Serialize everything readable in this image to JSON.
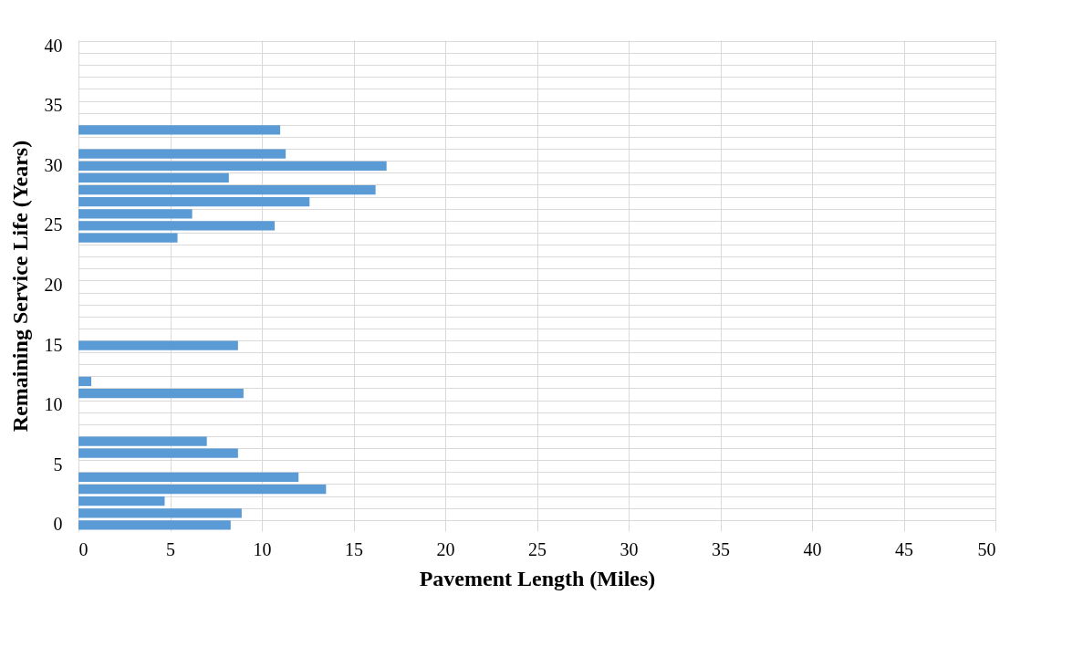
{
  "chart_data": {
    "type": "bar",
    "orientation": "horizontal",
    "xlabel": "Pavement Length (Miles)",
    "ylabel": "Remaining Service Life (Years)",
    "categories": [
      "40",
      null,
      null,
      null,
      null,
      "35",
      null,
      null,
      null,
      null,
      "30",
      null,
      null,
      null,
      null,
      "25",
      null,
      null,
      null,
      null,
      "20",
      null,
      null,
      null,
      null,
      "15",
      null,
      null,
      null,
      null,
      "10",
      null,
      null,
      null,
      null,
      "5",
      null,
      null,
      null,
      null,
      "0"
    ],
    "values": [
      null,
      null,
      null,
      null,
      null,
      null,
      null,
      11.0,
      null,
      11.3,
      16.8,
      8.2,
      16.2,
      12.6,
      6.2,
      10.7,
      5.4,
      null,
      null,
      null,
      null,
      null,
      null,
      null,
      null,
      8.7,
      null,
      null,
      0.7,
      9.0,
      null,
      null,
      null,
      7.0,
      8.7,
      null,
      12.0,
      13.5,
      4.7,
      8.9,
      8.3
    ],
    "color": "#5b9bd5",
    "xlim": [
      0,
      50
    ],
    "xticks": [
      0,
      5,
      10,
      15,
      20,
      25,
      30,
      35,
      40,
      45,
      50
    ],
    "grid": true
  }
}
